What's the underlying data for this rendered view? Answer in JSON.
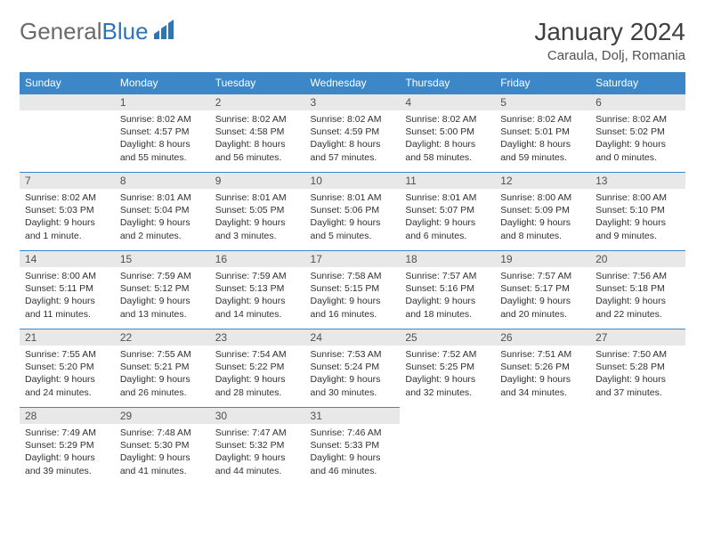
{
  "logo": {
    "word1": "General",
    "word2": "Blue"
  },
  "title": "January 2024",
  "location": "Caraula, Dolj, Romania",
  "colors": {
    "header_bg": "#3b87c8",
    "header_fg": "#ffffff",
    "daynum_bg": "#e8e8e8",
    "border": "#3b87c8",
    "logo_gray": "#6a6a6a",
    "logo_blue": "#2e75b6"
  },
  "weekdays": [
    "Sunday",
    "Monday",
    "Tuesday",
    "Wednesday",
    "Thursday",
    "Friday",
    "Saturday"
  ],
  "weeks": [
    [
      {
        "n": "",
        "lines": []
      },
      {
        "n": "1",
        "lines": [
          "Sunrise: 8:02 AM",
          "Sunset: 4:57 PM",
          "Daylight: 8 hours",
          "and 55 minutes."
        ]
      },
      {
        "n": "2",
        "lines": [
          "Sunrise: 8:02 AM",
          "Sunset: 4:58 PM",
          "Daylight: 8 hours",
          "and 56 minutes."
        ]
      },
      {
        "n": "3",
        "lines": [
          "Sunrise: 8:02 AM",
          "Sunset: 4:59 PM",
          "Daylight: 8 hours",
          "and 57 minutes."
        ]
      },
      {
        "n": "4",
        "lines": [
          "Sunrise: 8:02 AM",
          "Sunset: 5:00 PM",
          "Daylight: 8 hours",
          "and 58 minutes."
        ]
      },
      {
        "n": "5",
        "lines": [
          "Sunrise: 8:02 AM",
          "Sunset: 5:01 PM",
          "Daylight: 8 hours",
          "and 59 minutes."
        ]
      },
      {
        "n": "6",
        "lines": [
          "Sunrise: 8:02 AM",
          "Sunset: 5:02 PM",
          "Daylight: 9 hours",
          "and 0 minutes."
        ]
      }
    ],
    [
      {
        "n": "7",
        "lines": [
          "Sunrise: 8:02 AM",
          "Sunset: 5:03 PM",
          "Daylight: 9 hours",
          "and 1 minute."
        ]
      },
      {
        "n": "8",
        "lines": [
          "Sunrise: 8:01 AM",
          "Sunset: 5:04 PM",
          "Daylight: 9 hours",
          "and 2 minutes."
        ]
      },
      {
        "n": "9",
        "lines": [
          "Sunrise: 8:01 AM",
          "Sunset: 5:05 PM",
          "Daylight: 9 hours",
          "and 3 minutes."
        ]
      },
      {
        "n": "10",
        "lines": [
          "Sunrise: 8:01 AM",
          "Sunset: 5:06 PM",
          "Daylight: 9 hours",
          "and 5 minutes."
        ]
      },
      {
        "n": "11",
        "lines": [
          "Sunrise: 8:01 AM",
          "Sunset: 5:07 PM",
          "Daylight: 9 hours",
          "and 6 minutes."
        ]
      },
      {
        "n": "12",
        "lines": [
          "Sunrise: 8:00 AM",
          "Sunset: 5:09 PM",
          "Daylight: 9 hours",
          "and 8 minutes."
        ]
      },
      {
        "n": "13",
        "lines": [
          "Sunrise: 8:00 AM",
          "Sunset: 5:10 PM",
          "Daylight: 9 hours",
          "and 9 minutes."
        ]
      }
    ],
    [
      {
        "n": "14",
        "lines": [
          "Sunrise: 8:00 AM",
          "Sunset: 5:11 PM",
          "Daylight: 9 hours",
          "and 11 minutes."
        ]
      },
      {
        "n": "15",
        "lines": [
          "Sunrise: 7:59 AM",
          "Sunset: 5:12 PM",
          "Daylight: 9 hours",
          "and 13 minutes."
        ]
      },
      {
        "n": "16",
        "lines": [
          "Sunrise: 7:59 AM",
          "Sunset: 5:13 PM",
          "Daylight: 9 hours",
          "and 14 minutes."
        ]
      },
      {
        "n": "17",
        "lines": [
          "Sunrise: 7:58 AM",
          "Sunset: 5:15 PM",
          "Daylight: 9 hours",
          "and 16 minutes."
        ]
      },
      {
        "n": "18",
        "lines": [
          "Sunrise: 7:57 AM",
          "Sunset: 5:16 PM",
          "Daylight: 9 hours",
          "and 18 minutes."
        ]
      },
      {
        "n": "19",
        "lines": [
          "Sunrise: 7:57 AM",
          "Sunset: 5:17 PM",
          "Daylight: 9 hours",
          "and 20 minutes."
        ]
      },
      {
        "n": "20",
        "lines": [
          "Sunrise: 7:56 AM",
          "Sunset: 5:18 PM",
          "Daylight: 9 hours",
          "and 22 minutes."
        ]
      }
    ],
    [
      {
        "n": "21",
        "lines": [
          "Sunrise: 7:55 AM",
          "Sunset: 5:20 PM",
          "Daylight: 9 hours",
          "and 24 minutes."
        ]
      },
      {
        "n": "22",
        "lines": [
          "Sunrise: 7:55 AM",
          "Sunset: 5:21 PM",
          "Daylight: 9 hours",
          "and 26 minutes."
        ]
      },
      {
        "n": "23",
        "lines": [
          "Sunrise: 7:54 AM",
          "Sunset: 5:22 PM",
          "Daylight: 9 hours",
          "and 28 minutes."
        ]
      },
      {
        "n": "24",
        "lines": [
          "Sunrise: 7:53 AM",
          "Sunset: 5:24 PM",
          "Daylight: 9 hours",
          "and 30 minutes."
        ]
      },
      {
        "n": "25",
        "lines": [
          "Sunrise: 7:52 AM",
          "Sunset: 5:25 PM",
          "Daylight: 9 hours",
          "and 32 minutes."
        ]
      },
      {
        "n": "26",
        "lines": [
          "Sunrise: 7:51 AM",
          "Sunset: 5:26 PM",
          "Daylight: 9 hours",
          "and 34 minutes."
        ]
      },
      {
        "n": "27",
        "lines": [
          "Sunrise: 7:50 AM",
          "Sunset: 5:28 PM",
          "Daylight: 9 hours",
          "and 37 minutes."
        ]
      }
    ],
    [
      {
        "n": "28",
        "lines": [
          "Sunrise: 7:49 AM",
          "Sunset: 5:29 PM",
          "Daylight: 9 hours",
          "and 39 minutes."
        ]
      },
      {
        "n": "29",
        "lines": [
          "Sunrise: 7:48 AM",
          "Sunset: 5:30 PM",
          "Daylight: 9 hours",
          "and 41 minutes."
        ]
      },
      {
        "n": "30",
        "lines": [
          "Sunrise: 7:47 AM",
          "Sunset: 5:32 PM",
          "Daylight: 9 hours",
          "and 44 minutes."
        ]
      },
      {
        "n": "31",
        "lines": [
          "Sunrise: 7:46 AM",
          "Sunset: 5:33 PM",
          "Daylight: 9 hours",
          "and 46 minutes."
        ]
      },
      {
        "n": "",
        "lines": []
      },
      {
        "n": "",
        "lines": []
      },
      {
        "n": "",
        "lines": []
      }
    ]
  ]
}
